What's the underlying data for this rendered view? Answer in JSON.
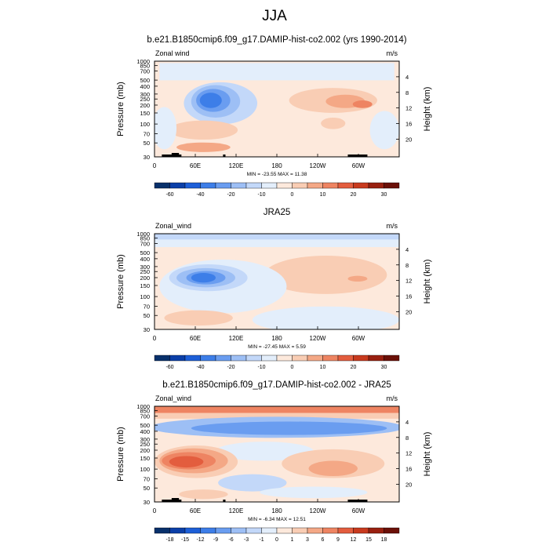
{
  "main_title": "JJA",
  "chart_data": [
    {
      "type": "contour",
      "title": "b.e21.B1850cmip6.f09_g17.DAMIP-hist-co2.002 (yrs 1990-2014)",
      "left_label": "Zonal wind",
      "units": "m/s",
      "ylabel": "Pressure (mb)",
      "ylabel_right": "Height (km)",
      "xticks": [
        "0",
        "60E",
        "120E",
        "180",
        "120W",
        "60W"
      ],
      "yticks": [
        30,
        50,
        70,
        100,
        150,
        200,
        250,
        300,
        400,
        500,
        700,
        850,
        1000
      ],
      "height_ticks": [
        4,
        8,
        12,
        16,
        20
      ],
      "stats": "MIN = -23.55  MAX =  11.38",
      "colorbar_labels": [
        "-60",
        "-40",
        "-20",
        "-10",
        "0",
        "10",
        "20",
        "30"
      ],
      "colorbar_colors": [
        "#08306b",
        "#0b3fa8",
        "#1d5fd8",
        "#3d7ee8",
        "#6a9df0",
        "#9dbff5",
        "#c3d8f9",
        "#e3eefb",
        "#fde9dc",
        "#f9cdb4",
        "#f4a886",
        "#ee8462",
        "#e35d3e",
        "#c83a1e",
        "#992010",
        "#6b1008"
      ],
      "extrema": {
        "min": -23.55,
        "max": 11.38
      }
    },
    {
      "type": "contour",
      "title": "JRA25",
      "left_label": "Zonal_wind",
      "units": "m/s",
      "ylabel": "Pressure (mb)",
      "ylabel_right": "Height (km)",
      "xticks": [
        "0",
        "60E",
        "120E",
        "180",
        "120W",
        "60W"
      ],
      "yticks": [
        30,
        50,
        70,
        100,
        150,
        200,
        250,
        300,
        400,
        500,
        700,
        850,
        1000
      ],
      "height_ticks": [
        4,
        8,
        12,
        16,
        20
      ],
      "stats": "MIN = -27.45  MAX =   5.59",
      "colorbar_labels": [
        "-60",
        "-40",
        "-20",
        "-10",
        "0",
        "10",
        "20",
        "30"
      ],
      "colorbar_colors": [
        "#08306b",
        "#0b3fa8",
        "#1d5fd8",
        "#3d7ee8",
        "#6a9df0",
        "#9dbff5",
        "#c3d8f9",
        "#e3eefb",
        "#fde9dc",
        "#f9cdb4",
        "#f4a886",
        "#ee8462",
        "#e35d3e",
        "#c83a1e",
        "#992010",
        "#6b1008"
      ],
      "extrema": {
        "min": -27.45,
        "max": 5.59
      }
    },
    {
      "type": "contour",
      "title": "b.e21.B1850cmip6.f09_g17.DAMIP-hist-co2.002 - JRA25",
      "left_label": "Zonal_wind",
      "units": "m/s",
      "ylabel": "Pressure (mb)",
      "ylabel_right": "Height (km)",
      "xticks": [
        "0",
        "60E",
        "120E",
        "180",
        "120W",
        "60W"
      ],
      "yticks": [
        30,
        50,
        70,
        100,
        150,
        200,
        250,
        300,
        400,
        500,
        700,
        850,
        1000
      ],
      "height_ticks": [
        4,
        8,
        12,
        16,
        20
      ],
      "stats": "MIN =  -6.34  MAX =  12.51",
      "colorbar_labels": [
        "-18",
        "-15",
        "-12",
        "-9",
        "-6",
        "-3",
        "-1",
        "0",
        "1",
        "3",
        "6",
        "9",
        "12",
        "15",
        "18"
      ],
      "colorbar_colors": [
        "#08306b",
        "#0b3fa8",
        "#1d5fd8",
        "#3d7ee8",
        "#6a9df0",
        "#9dbff5",
        "#c3d8f9",
        "#e3eefb",
        "#fde9dc",
        "#f9cdb4",
        "#f4a886",
        "#ee8462",
        "#e35d3e",
        "#c83a1e",
        "#992010",
        "#6b1008"
      ],
      "extrema": {
        "min": -6.34,
        "max": 12.51
      }
    }
  ]
}
